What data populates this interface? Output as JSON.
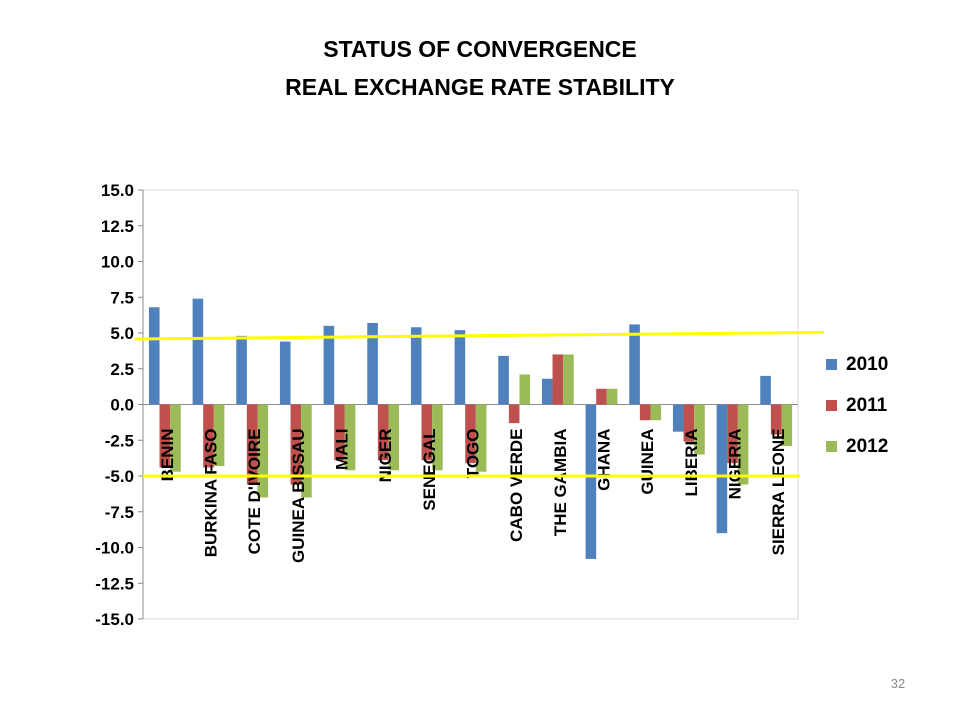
{
  "title_line1": "STATUS OF CONVERGENCE",
  "title_line2": "REAL EXCHANGE RATE STABILITY",
  "page_number": "32",
  "chart_data": {
    "type": "bar",
    "categories": [
      "BENIN",
      "BURKINA FASO",
      "COTE D'IVOIRE",
      "GUINEA BISSAU",
      "MALI",
      "NIGER",
      "SENEGAL",
      "TOGO",
      "CABO VERDE",
      "THE GAMBIA",
      "GHANA",
      "GUINEA",
      "LIBERIA",
      "NIGERIA",
      "SIERRA LEONE"
    ],
    "series": [
      {
        "name": "2010",
        "color": "#4F81BD",
        "values": [
          6.8,
          7.4,
          4.8,
          4.4,
          5.5,
          5.7,
          5.4,
          5.2,
          3.4,
          1.8,
          -10.8,
          5.6,
          -1.9,
          -9.0,
          2.0
        ]
      },
      {
        "name": "2011",
        "color": "#C0504D",
        "values": [
          -4.4,
          -4.4,
          -5.6,
          -5.6,
          -3.9,
          -3.9,
          -3.9,
          -4.1,
          -1.3,
          3.5,
          1.1,
          -1.1,
          -2.6,
          -4.1,
          -2.1
        ]
      },
      {
        "name": "2012",
        "color": "#9BBB59",
        "values": [
          -4.7,
          -4.3,
          -6.5,
          -6.5,
          -4.6,
          -4.6,
          -4.6,
          -4.7,
          2.1,
          3.5,
          1.1,
          -1.1,
          -3.5,
          -5.6,
          -2.9
        ]
      }
    ],
    "ylim": [
      -15,
      15
    ],
    "y_step": 2.5,
    "y_ticks": [
      "15.0",
      "12.5",
      "10.0",
      "7.5",
      "5.0",
      "2.5",
      "0.0",
      "-2.5",
      "-5.0",
      "-7.5",
      "-10.0",
      "-12.5",
      "-15.0"
    ],
    "grid": false,
    "legend_position": "right",
    "reference_lines": [
      {
        "value": 5,
        "color": "#FFFF00"
      },
      {
        "value": -5,
        "color": "#FFFF00"
      }
    ]
  }
}
